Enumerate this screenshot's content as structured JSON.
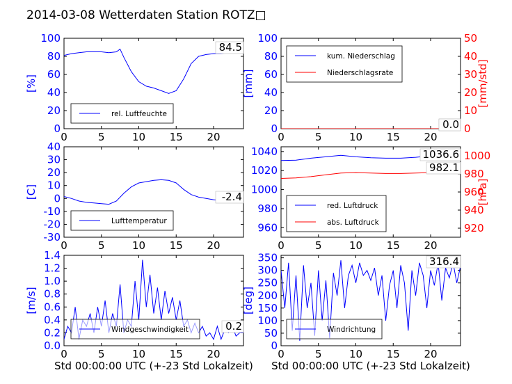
{
  "page_title": "2014-03-08 Wetterdaten Station ROTZ□",
  "colors": {
    "left_axis": "#0000ff",
    "right_axis": "#ff0000",
    "series_blue": "#0000ff",
    "series_red": "#ff0000",
    "frame": "#000000"
  },
  "xlabel": "Std 00:00:00 UTC (+-23 Std Lokalzeit)",
  "chart_data": [
    {
      "type": "line",
      "panel": "humidity",
      "ylabel": "[%]",
      "ylim": [
        0,
        100
      ],
      "yticks": [
        0,
        20,
        40,
        60,
        80,
        100
      ],
      "xlim": [
        0,
        24
      ],
      "xticks": [
        0,
        5,
        10,
        15,
        20
      ],
      "last_value_label": "84.5",
      "legend_loc": "lower-left",
      "series": [
        {
          "name": "rel. Luftfeuchte",
          "color": "#0000ff",
          "x": [
            0,
            1,
            2,
            3,
            4,
            5,
            6,
            7,
            7.5,
            8,
            9,
            10,
            11,
            12,
            13,
            14,
            15,
            16,
            17,
            18,
            19,
            20,
            21,
            22,
            23,
            24
          ],
          "y": [
            81,
            83,
            84,
            85,
            85,
            85,
            84,
            85,
            88,
            79,
            63,
            52,
            47,
            45,
            42,
            39,
            42,
            55,
            72,
            80,
            82,
            83,
            83,
            84,
            85,
            84.5
          ]
        }
      ]
    },
    {
      "type": "line",
      "panel": "precipitation",
      "ylabel": "[mm]",
      "ylim": [
        0,
        100
      ],
      "yticks": [
        0,
        20,
        40,
        60,
        80,
        100
      ],
      "ylabel_right": "[mm/std]",
      "ylim_right": [
        0,
        50
      ],
      "yticks_right": [
        0,
        10,
        20,
        30,
        40,
        50
      ],
      "xlim": [
        0,
        24
      ],
      "xticks": [
        0,
        5,
        10,
        15,
        20
      ],
      "last_value_labels": [
        "0.0",
        "0.0"
      ],
      "legend_loc": "top-left",
      "series": [
        {
          "name": "kum. Niederschlag",
          "color": "#0000ff",
          "axis": "left",
          "x": [
            0,
            24
          ],
          "y": [
            0,
            0
          ]
        },
        {
          "name": "Niederschlagsrate",
          "color": "#ff0000",
          "axis": "right",
          "x": [
            0,
            24
          ],
          "y": [
            0,
            0
          ]
        }
      ]
    },
    {
      "type": "line",
      "panel": "temperature",
      "ylabel": "[C]",
      "ylim": [
        -30,
        40
      ],
      "yticks": [
        -30,
        -20,
        -10,
        0,
        10,
        20,
        30,
        40
      ],
      "xlim": [
        0,
        24
      ],
      "xticks": [
        0,
        5,
        10,
        15,
        20
      ],
      "last_value_label": "-2.4",
      "legend_loc": "lower-left",
      "series": [
        {
          "name": "Lufttemperatur",
          "color": "#0000ff",
          "x": [
            0,
            1,
            2,
            3,
            4,
            5,
            6,
            7,
            8,
            9,
            10,
            11,
            12,
            13,
            14,
            15,
            16,
            17,
            18,
            19,
            20,
            21,
            22,
            23,
            24
          ],
          "y": [
            1.5,
            0,
            -2,
            -3,
            -3.5,
            -4,
            -4.5,
            -2,
            4,
            9,
            12,
            13,
            14,
            14.5,
            14,
            12,
            7,
            3,
            1,
            0,
            -1,
            -1.5,
            -2,
            -2.3,
            -2.4
          ]
        }
      ]
    },
    {
      "type": "line",
      "panel": "pressure",
      "ylim": [
        950,
        1045
      ],
      "yticks": [
        960,
        980,
        1000,
        1020,
        1040
      ],
      "ylabel_right": "[hPa]",
      "ylim_right": [
        910,
        1010
      ],
      "yticks_right": [
        920,
        940,
        960,
        980,
        1000
      ],
      "xlim": [
        0,
        24
      ],
      "xticks": [
        0,
        5,
        10,
        15,
        20
      ],
      "last_value_labels": [
        "1036.6",
        "982.1"
      ],
      "legend_loc": "lower-left",
      "series": [
        {
          "name": "red. Luftdruck",
          "color": "#0000ff",
          "axis": "left",
          "x": [
            0,
            2,
            4,
            6,
            8,
            10,
            12,
            14,
            16,
            18,
            20,
            22,
            24
          ],
          "y": [
            1030.5,
            1031,
            1033,
            1034.5,
            1036,
            1034.5,
            1033.5,
            1033,
            1033,
            1034,
            1035.5,
            1036.2,
            1036.6
          ]
        }
      ]
    },
    {
      "type": "line",
      "panel": "pressure-abs",
      "axis": "right",
      "series": [
        {
          "name": "abs. Luftdruck",
          "color": "#ff0000",
          "axis": "right",
          "x": [
            0,
            2,
            4,
            6,
            8,
            10,
            12,
            14,
            16,
            18,
            20,
            22,
            24
          ],
          "y": [
            975,
            975.5,
            977,
            979,
            981,
            981.5,
            981,
            980.5,
            980.5,
            981,
            981.5,
            982,
            982.1
          ]
        }
      ]
    },
    {
      "type": "line",
      "panel": "wind-speed",
      "ylabel": "[m/s]",
      "ylim": [
        0,
        1.4
      ],
      "yticks": [
        "0.0",
        "0.2",
        "0.4",
        "0.6",
        "0.8",
        "1.0",
        "1.2",
        "1.4"
      ],
      "xlim": [
        0,
        24
      ],
      "xticks": [
        0,
        5,
        10,
        15,
        20
      ],
      "last_value_label": "0.2",
      "legend_loc": "lower-left",
      "series": [
        {
          "name": "Windgeschwindigkeit",
          "color": "#0000ff",
          "x": [
            0,
            0.5,
            1,
            1.5,
            2,
            2.5,
            3,
            3.5,
            4,
            4.5,
            5,
            5.5,
            6,
            6.5,
            7,
            7.5,
            8,
            8.5,
            9,
            9.5,
            10,
            10.5,
            11,
            11.5,
            12,
            12.5,
            13,
            13.5,
            14,
            14.5,
            15,
            15.5,
            16,
            16.5,
            17,
            17.5,
            18,
            18.5,
            19,
            19.5,
            20,
            20.5,
            21,
            21.5,
            22,
            22.5,
            23,
            23.5,
            24
          ],
          "y": [
            0.1,
            0.3,
            0.2,
            0.6,
            0.1,
            0.4,
            0.3,
            0.5,
            0.2,
            0.6,
            0.3,
            0.7,
            0.2,
            0.5,
            0.3,
            0.95,
            0.2,
            0.4,
            0.3,
            1.0,
            0.4,
            1.33,
            0.6,
            1.1,
            0.5,
            0.9,
            0.4,
            0.85,
            0.5,
            0.75,
            0.4,
            0.7,
            0.3,
            0.4,
            0.2,
            0.35,
            0.2,
            0.3,
            0.15,
            0.2,
            0.1,
            0.3,
            0.1,
            0.25,
            0.2,
            0.3,
            0.15,
            0.2,
            0.2
          ]
        }
      ]
    },
    {
      "type": "line",
      "panel": "wind-direction",
      "ylabel": "[deg]",
      "ylim": [
        0,
        360
      ],
      "yticks": [
        0,
        50,
        100,
        150,
        200,
        250,
        300,
        350
      ],
      "xlim": [
        0,
        24
      ],
      "xticks": [
        0,
        5,
        10,
        15,
        20
      ],
      "last_value_label": "316.4",
      "legend_loc": "lower-left",
      "series": [
        {
          "name": "Windrichtung",
          "color": "#0000ff",
          "x": [
            0,
            0.5,
            1,
            1.5,
            2,
            2.5,
            3,
            3.5,
            4,
            4.5,
            5,
            5.5,
            6,
            6.5,
            7,
            7.5,
            8,
            8.5,
            9,
            9.5,
            10,
            10.5,
            11,
            11.5,
            12,
            12.5,
            13,
            13.5,
            14,
            14.5,
            15,
            15.5,
            16,
            16.5,
            17,
            17.5,
            18,
            18.5,
            19,
            19.5,
            20,
            20.5,
            21,
            21.5,
            22,
            22.5,
            23,
            23.5,
            24
          ],
          "y": [
            300,
            150,
            330,
            60,
            280,
            20,
            320,
            150,
            250,
            40,
            300,
            100,
            260,
            30,
            290,
            200,
            340,
            150,
            280,
            320,
            250,
            330,
            280,
            300,
            260,
            310,
            200,
            280,
            100,
            240,
            300,
            150,
            320,
            250,
            60,
            300,
            200,
            330,
            280,
            150,
            300,
            240,
            330,
            180,
            310,
            270,
            330,
            250,
            316.4
          ]
        }
      ]
    }
  ]
}
